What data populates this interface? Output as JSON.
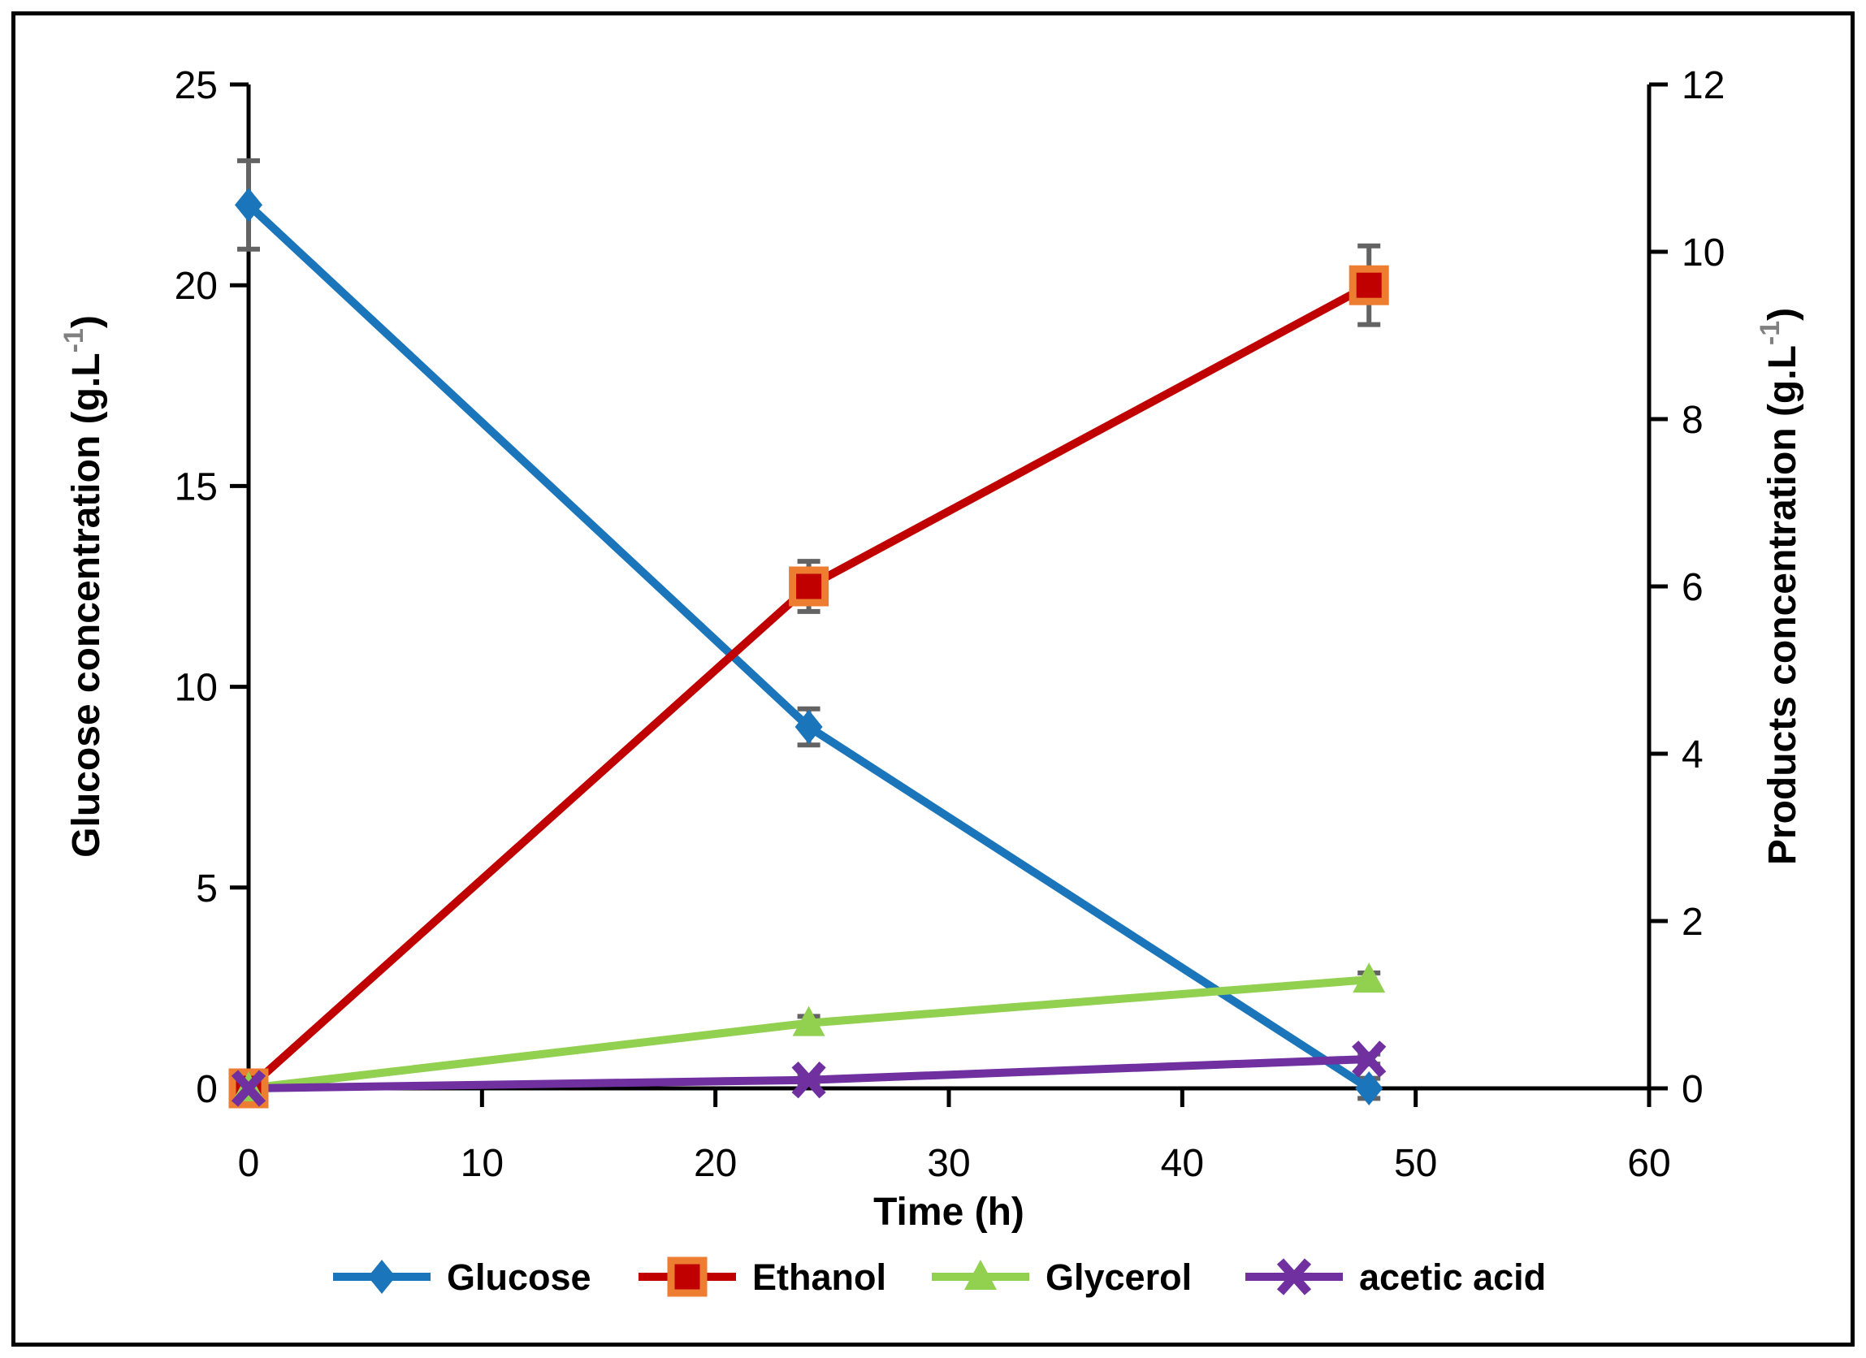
{
  "figure": {
    "background": "#ffffff",
    "border_color": "#000000"
  },
  "chart_data": {
    "type": "line",
    "title": "",
    "xlabel": "Time (h)",
    "x": [
      0,
      24,
      48
    ],
    "x_ticks": [
      0,
      10,
      20,
      30,
      40,
      50,
      60
    ],
    "xlim": [
      0,
      60
    ],
    "left_axis": {
      "label_main": "Glucose concentration (g.L",
      "label_sup": "-1",
      "label_close": ")",
      "ticks": [
        0,
        5,
        10,
        15,
        20,
        25
      ],
      "lim": [
        0,
        25
      ]
    },
    "right_axis": {
      "label_main": "Products concentration (g.L",
      "label_sup": "-1",
      "label_close": ")",
      "ticks": [
        0,
        2,
        4,
        6,
        8,
        10,
        12
      ],
      "lim": [
        0,
        12
      ]
    },
    "series": [
      {
        "name": "Glucose",
        "axis": "left",
        "marker": "diamond",
        "color": "#1B75BB",
        "values": [
          22,
          9,
          0
        ],
        "errors": [
          1.1,
          0.45,
          0.25
        ]
      },
      {
        "name": "Ethanol",
        "axis": "right",
        "marker": "square",
        "color": "#C00000",
        "marker_border": "#ED7D31",
        "values": [
          0,
          6.0,
          9.6
        ],
        "errors": [
          0,
          0.3,
          0.47
        ]
      },
      {
        "name": "Glycerol",
        "axis": "right",
        "marker": "triangle",
        "color": "#92D050",
        "values": [
          0,
          0.78,
          1.3
        ],
        "errors": [
          0,
          0.08,
          0.08
        ]
      },
      {
        "name": "acetic acid",
        "axis": "right",
        "marker": "x",
        "color": "#7030A0",
        "values": [
          0,
          0.1,
          0.35
        ],
        "errors": [
          0,
          0.05,
          0.06
        ]
      }
    ],
    "error_bar_color": "#636363",
    "sup_color": "#808080",
    "grid": false,
    "legend_position": "bottom"
  }
}
